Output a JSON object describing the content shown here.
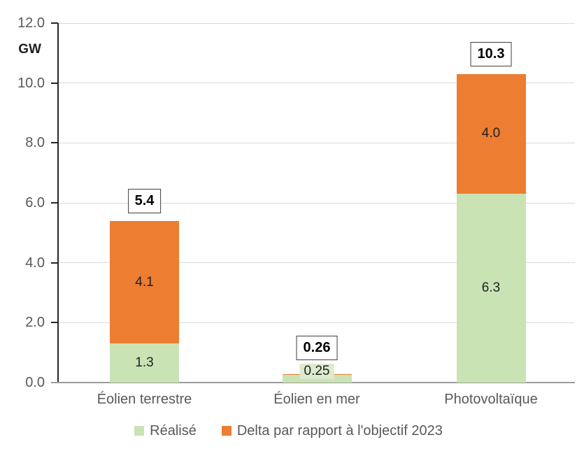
{
  "chart_data": {
    "type": "bar",
    "stacked": true,
    "title": "",
    "unit_label": "GW",
    "categories": [
      "Éolien terrestre",
      "Éolien en mer",
      "Photovoltaïque"
    ],
    "series": [
      {
        "name": "Réalisé",
        "color": "#C9E3B5",
        "values": [
          1.3,
          0.25,
          6.3
        ],
        "labels": [
          "1.3",
          "0.25",
          "6.3"
        ]
      },
      {
        "name": "Delta par rapport à l'objectif 2023",
        "color": "#ED7D31",
        "values": [
          4.1,
          0.01,
          4.0
        ],
        "labels": [
          "4.1",
          "",
          "4.0"
        ]
      }
    ],
    "totals": [
      5.4,
      0.26,
      10.3
    ],
    "total_labels": [
      "5.4",
      "0.26",
      "10.3"
    ],
    "ylim": [
      0,
      12
    ],
    "ytick_interval": 2,
    "ytick_labels": [
      "0.0",
      "2.0",
      "4.0",
      "6.0",
      "8.0",
      "10.0",
      "12.0"
    ],
    "grid": true,
    "legend_position": "bottom"
  }
}
